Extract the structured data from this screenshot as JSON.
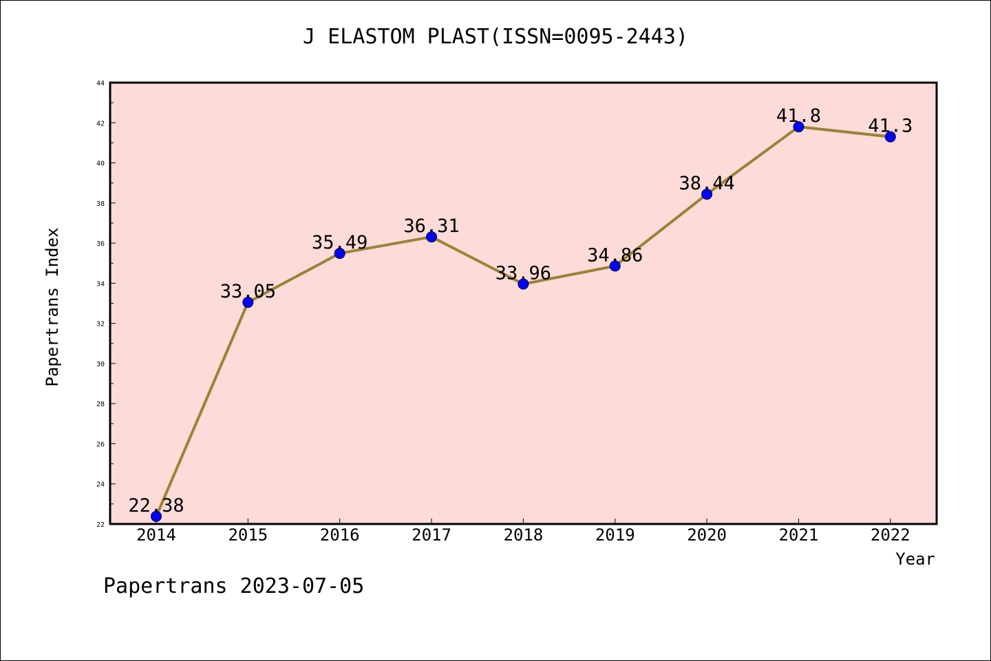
{
  "chart_data": {
    "type": "line",
    "title": "J ELASTOM PLAST(ISSN=0095-2443)",
    "xlabel": "Year",
    "ylabel": "Papertrans Index",
    "categories": [
      "2014",
      "2015",
      "2016",
      "2017",
      "2018",
      "2019",
      "2020",
      "2021",
      "2022"
    ],
    "values": [
      22.38,
      33.05,
      35.49,
      36.31,
      33.96,
      34.86,
      38.44,
      41.8,
      41.3
    ],
    "data_labels": [
      "22.38",
      "33.05",
      "35.49",
      "36.31",
      "33.96",
      "34.86",
      "38.44",
      "41.8",
      "41.3"
    ],
    "ylim": [
      22,
      44
    ],
    "yticks": [
      "22",
      "24",
      "26",
      "28",
      "30",
      "32",
      "34",
      "36",
      "38",
      "40",
      "42",
      "44"
    ],
    "grid": false,
    "legend": "none"
  },
  "footer": "Papertrans 2023-07-05",
  "colors": {
    "plot_background": "#fddbd8",
    "line": "#9a8238",
    "marker": "#0000ff",
    "axis": "#000000"
  }
}
